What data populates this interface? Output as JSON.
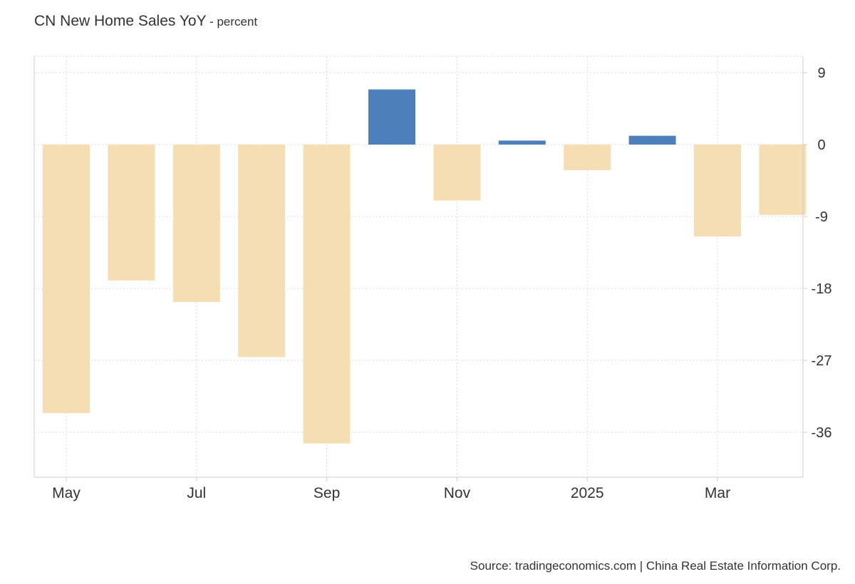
{
  "chart_data": {
    "type": "bar",
    "title": "CN New Home Sales YoY",
    "subtitle": "- percent",
    "categories": [
      "2024-05",
      "2024-06",
      "2024-07",
      "2024-08",
      "2024-09",
      "2024-10",
      "2024-11",
      "2024-12",
      "2025-01",
      "2025-02",
      "2025-03",
      "2025-04"
    ],
    "values": [
      -33.6,
      -17,
      -19.7,
      -26.6,
      -37.4,
      6.9,
      -7,
      0.5,
      -3.2,
      1.1,
      -11.5,
      -8.8
    ],
    "x_tick_labels": [
      {
        "category": "2024-05",
        "label": "May"
      },
      {
        "category": "2024-07",
        "label": "Jul"
      },
      {
        "category": "2024-09",
        "label": "Sep"
      },
      {
        "category": "2024-11",
        "label": "Nov"
      },
      {
        "category": "2025-01",
        "label": "2025"
      },
      {
        "category": "2025-03",
        "label": "Mar"
      }
    ],
    "y_ticks": [
      9,
      0,
      -9,
      -18,
      -27,
      -36
    ],
    "ylim": [
      -41.5,
      11
    ],
    "y_axis_side": "right",
    "grid": true,
    "colors": {
      "positive": "#4d80bb",
      "negative": "#f5deb3",
      "grid": "#d9d9d9",
      "axis": "#cccccc"
    },
    "source": "Source: tradingeconomics.com | China Real Estate Information Corp."
  }
}
